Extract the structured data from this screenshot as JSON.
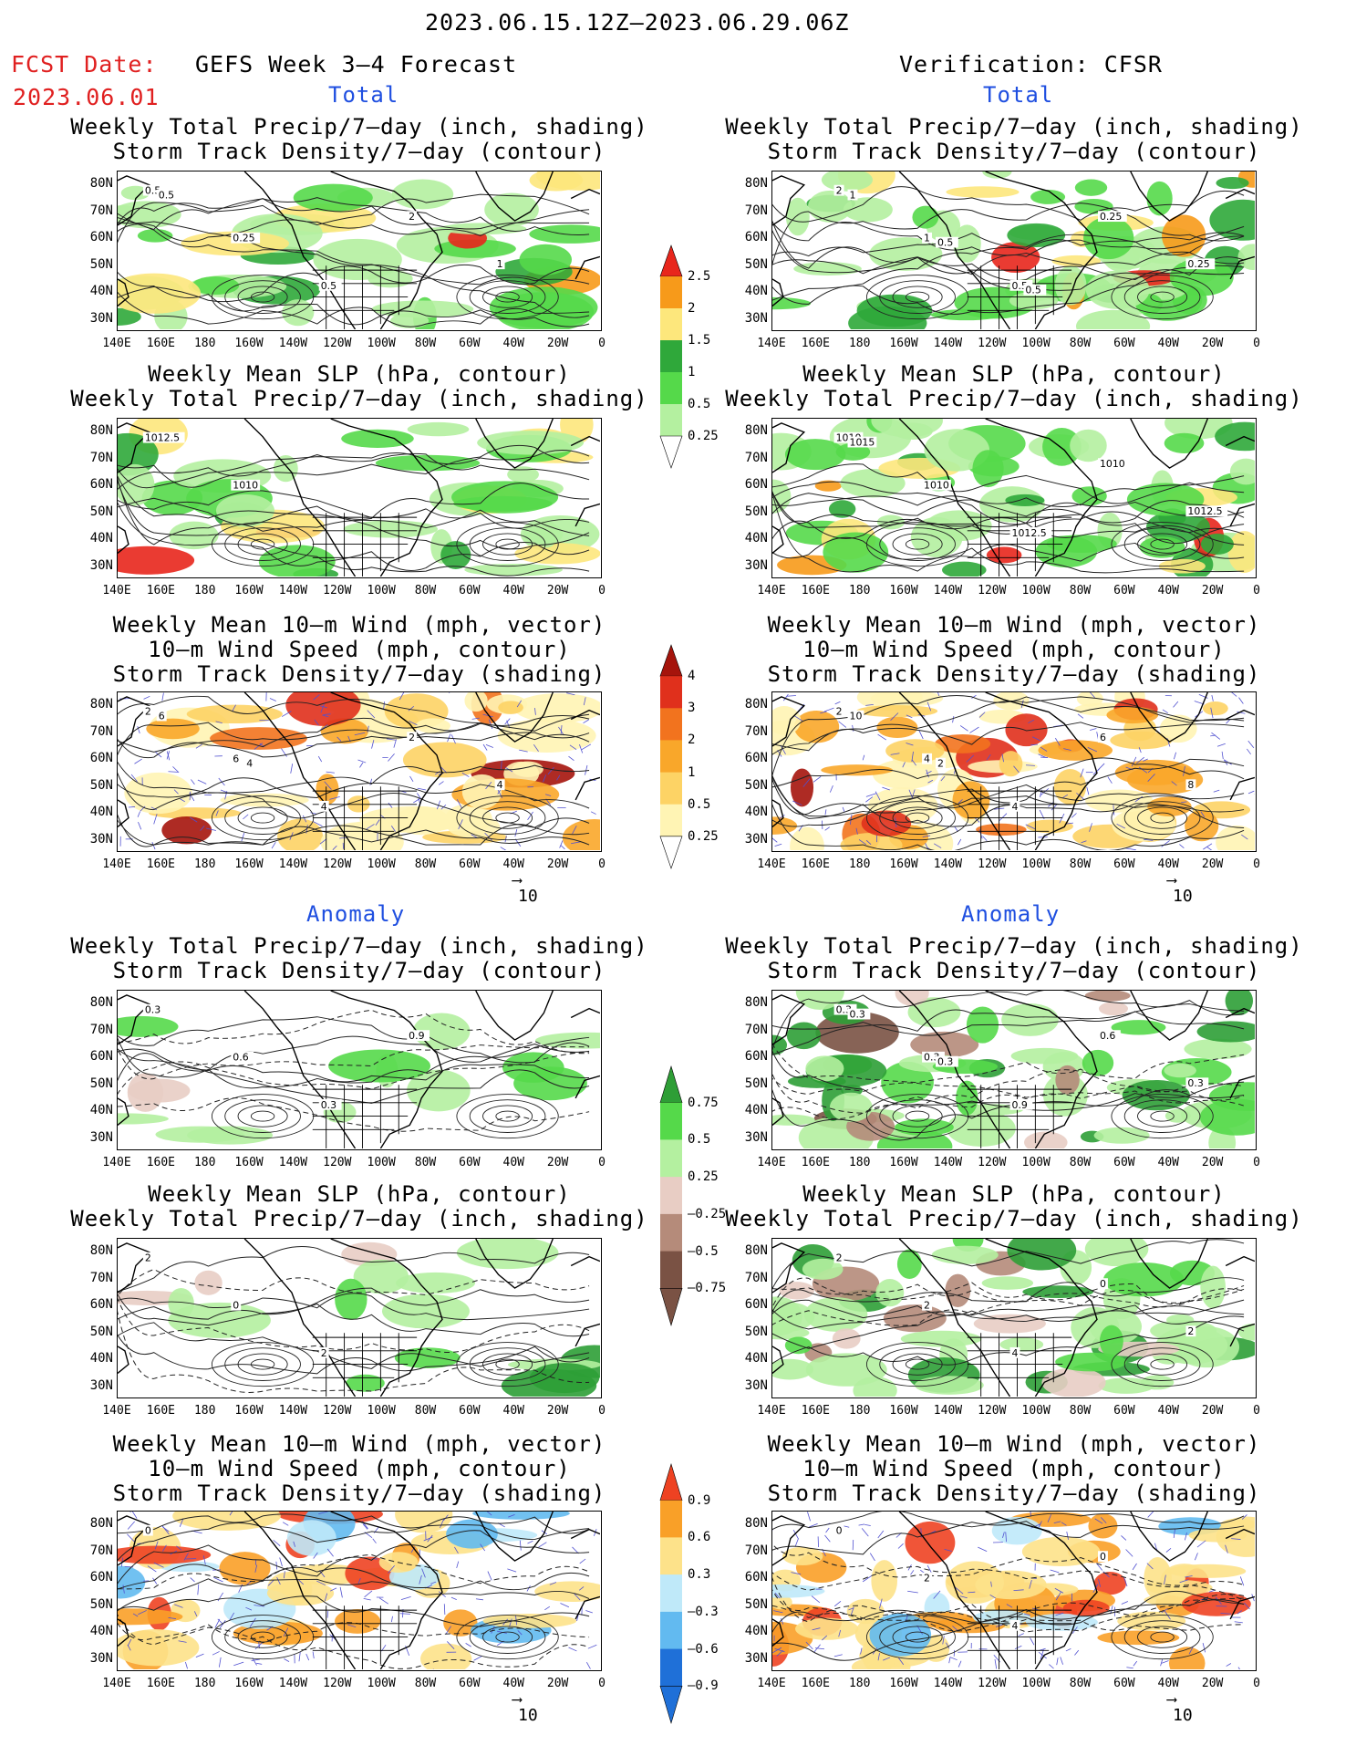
{
  "header": {
    "date_range": "2023.06.15.12Z–2023.06.29.06Z",
    "fcst_label": "FCST Date:",
    "fcst_date": "2023.06.01",
    "left_title": "GEFS Week 3–4 Forecast",
    "right_title": "Verification: CFSR"
  },
  "sections": {
    "total": "Total",
    "anomaly": "Anomaly"
  },
  "panel_titles": {
    "precip_storm": [
      "Weekly Total Precip/7–day (inch, shading)",
      "Storm Track Density/7–day (contour)"
    ],
    "slp_precip": [
      "Weekly Mean SLP (hPa, contour)",
      "Weekly Total Precip/7–day (inch, shading)"
    ],
    "wind_storm": [
      "Weekly Mean 10–m Wind (mph, vector)",
      "10–m Wind Speed (mph, contour)",
      "Storm Track Density/7–day (shading)"
    ]
  },
  "axes": {
    "lat": [
      "80N",
      "70N",
      "60N",
      "50N",
      "40N",
      "30N"
    ],
    "lon": [
      "140E",
      "160E",
      "180",
      "160W",
      "140W",
      "120W",
      "100W",
      "80W",
      "60W",
      "40W",
      "20W",
      "0"
    ]
  },
  "colorbars": {
    "precip_total": {
      "labels": [
        "2.5",
        "2",
        "1.5",
        "1",
        "0.5",
        "0.25"
      ],
      "colors": [
        "#e8261c",
        "#f79a1a",
        "#fde77c",
        "#2fa83a",
        "#55d94a",
        "#b4f0a0"
      ]
    },
    "storm_total": {
      "labels": [
        "4",
        "3",
        "2",
        "1",
        "0.5",
        "0.25"
      ],
      "colors": [
        "#a5140c",
        "#e0301c",
        "#f2731e",
        "#f9a72a",
        "#fdd365",
        "#fff4b4"
      ]
    },
    "precip_anom": {
      "labels": [
        "0.75",
        "0.5",
        "0.25",
        "–0.25",
        "–0.5",
        "–0.75"
      ],
      "colors": [
        "#2e9e36",
        "#55d94a",
        "#b4f0a0",
        "#e8cdc4",
        "#b58b7a",
        "#7a5244"
      ]
    },
    "storm_anom": {
      "labels": [
        "0.9",
        "0.6",
        "0.3",
        "–0.3",
        "–0.6",
        "–0.9"
      ],
      "colors": [
        "#ee4222",
        "#f9a028",
        "#fde28a",
        "#bfe9f9",
        "#62baf0",
        "#1f70d8"
      ]
    }
  },
  "contour_labels": {
    "l_precip": [
      "0.5",
      "0.25",
      "0.5",
      "2",
      "1",
      "0.5"
    ],
    "r_precip": [
      "2",
      "1",
      "0.5",
      "0.25",
      "0.25",
      "1",
      "0.5",
      "0.5"
    ],
    "l_slp": [
      "1012.5",
      "1010"
    ],
    "r_slp": [
      "1010",
      "1010",
      "1012.5",
      "1010",
      "1012.5",
      "1015"
    ],
    "l_wind": [
      "2",
      "6",
      "4",
      "2",
      "4",
      "6",
      "4"
    ],
    "r_wind": [
      "2",
      "4",
      "4",
      "6",
      "8",
      "10",
      "2"
    ],
    "l_panom": [
      "0.3",
      "0.6",
      "0.3",
      "0.9"
    ],
    "r_panom": [
      "0.3",
      "0.3",
      "0.9",
      "0.6",
      "0.3",
      "0.3",
      "0.3"
    ],
    "l_sanom": [
      "2",
      "0",
      "2"
    ],
    "r_sanom": [
      "2",
      "2",
      "4",
      "0",
      "2"
    ],
    "l_wanom": [
      "0"
    ],
    "r_wanom": [
      "0",
      "2",
      "4",
      "0"
    ]
  },
  "vector_scale": "10"
}
